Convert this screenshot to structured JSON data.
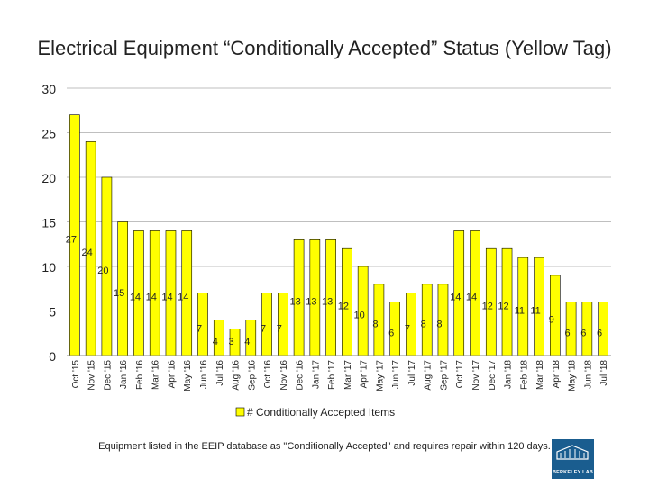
{
  "page": {
    "title": "Electrical Equipment “Conditionally Accepted” Status (Yellow Tag)",
    "footnote": "Equipment listed in the EEIP database as \"Conditionally Accepted\" and requires repair within 120 days.",
    "logo_text": "BERKELEY LAB"
  },
  "colors": {
    "bar_fill": "#ffff00",
    "bar_stroke": "#000000",
    "gridline": "#bfbfbf"
  },
  "chart_data": {
    "type": "bar",
    "title": "Electrical Equipment “Conditionally Accepted” Status (Yellow Tag)",
    "xlabel": "",
    "ylabel": "",
    "ylim": [
      0,
      30
    ],
    "yticks": [
      0,
      5,
      10,
      15,
      20,
      25,
      30
    ],
    "grid": true,
    "legend": "bottom",
    "categories": [
      "Oct '15",
      "Nov '15",
      "Dec '15",
      "Jan '16",
      "Feb '16",
      "Mar '16",
      "Apr '16",
      "May '16",
      "Jun '16",
      "Jul '16",
      "Aug '16",
      "Sep '16",
      "Oct '16",
      "Nov '16",
      "Dec '16",
      "Jan '17",
      "Feb '17",
      "Mar '17",
      "Apr '17",
      "May '17",
      "Jun '17",
      "Jul '17",
      "Aug '17",
      "Sep '17",
      "Oct '17",
      "Nov '17",
      "Dec '17",
      "Jan '18",
      "Feb '18",
      "Mar '18",
      "Apr '18",
      "May '18",
      "Jun '18",
      "Jul '18"
    ],
    "series": [
      {
        "name": "# Conditionally Accepted Items",
        "values": [
          27,
          24,
          20,
          15,
          14,
          14,
          14,
          14,
          7,
          4,
          3,
          4,
          7,
          7,
          13,
          13,
          13,
          12,
          10,
          8,
          6,
          7,
          8,
          8,
          14,
          14,
          12,
          12,
          11,
          11,
          9,
          6,
          6,
          6
        ]
      }
    ]
  }
}
